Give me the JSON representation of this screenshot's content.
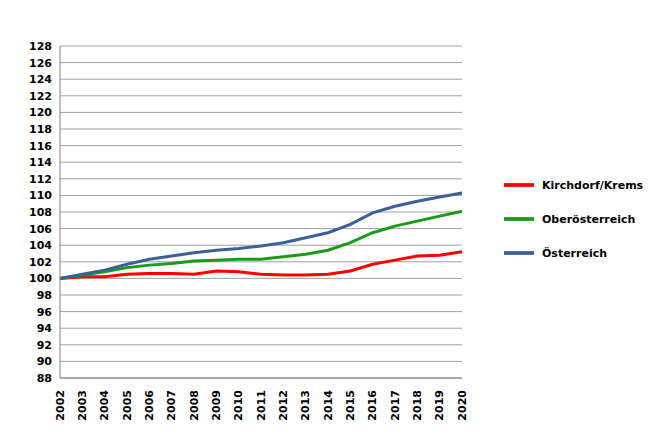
{
  "chart_data": {
    "type": "line",
    "categories": [
      "2002",
      "2003",
      "2004",
      "2005",
      "2006",
      "2007",
      "2008",
      "2009",
      "2010",
      "2011",
      "2012",
      "2013",
      "2014",
      "2015",
      "2016",
      "2017",
      "2018",
      "2019",
      "2020"
    ],
    "series": [
      {
        "name": "Kirchdorf/Krems",
        "color": "#ff0000",
        "values": [
          100,
          100.2,
          100.2,
          100.5,
          100.6,
          100.6,
          100.5,
          100.9,
          100.8,
          100.5,
          100.4,
          100.4,
          100.5,
          100.9,
          101.7,
          102.2,
          102.7,
          102.8,
          103.2
        ]
      },
      {
        "name": "Oberösterreich",
        "color": "#1a9a1a",
        "values": [
          100,
          100.4,
          100.8,
          101.3,
          101.6,
          101.8,
          102.1,
          102.2,
          102.3,
          102.3,
          102.6,
          102.9,
          103.4,
          104.3,
          105.5,
          106.3,
          106.9,
          107.5,
          108.1
        ]
      },
      {
        "name": "Österreich",
        "color": "#3a5f9a",
        "values": [
          100,
          100.5,
          101.0,
          101.7,
          102.3,
          102.7,
          103.1,
          103.4,
          103.6,
          103.9,
          104.3,
          104.9,
          105.5,
          106.5,
          107.9,
          108.7,
          109.3,
          109.8,
          110.3
        ]
      }
    ],
    "ylim": [
      88,
      128
    ],
    "yticks": [
      88,
      90,
      92,
      94,
      96,
      98,
      100,
      102,
      104,
      106,
      108,
      110,
      112,
      114,
      116,
      118,
      120,
      122,
      124,
      126,
      128
    ],
    "grid": true,
    "legend": "right"
  }
}
